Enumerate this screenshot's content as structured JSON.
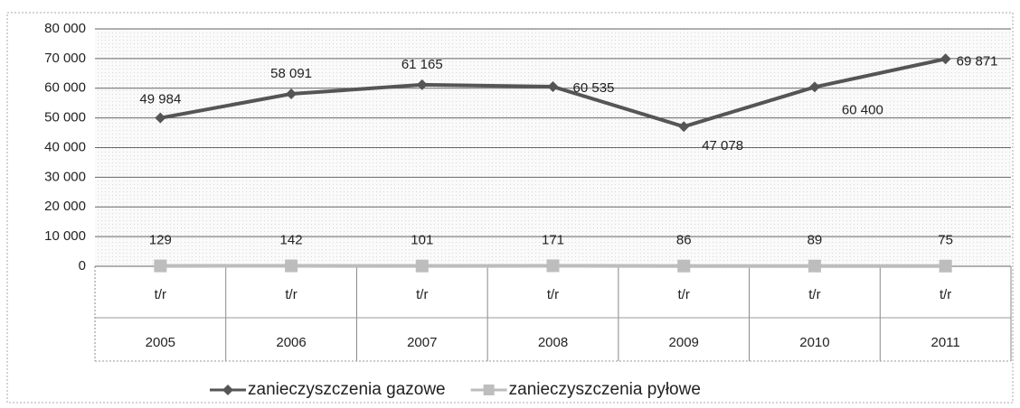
{
  "chart_data": {
    "type": "line",
    "categories": [
      "2005",
      "2006",
      "2007",
      "2008",
      "2009",
      "2010",
      "2011"
    ],
    "unit_label": "t/r",
    "series": [
      {
        "name": "zanieczyszczenia gazowe",
        "color": "#555555",
        "marker": "diamond",
        "values": [
          49984,
          58091,
          61165,
          60535,
          47078,
          60400,
          69871
        ],
        "value_labels": [
          "49 984",
          "58 091",
          "61 165",
          "60 535",
          "47 078",
          "60 400",
          "69 871"
        ]
      },
      {
        "name": "zanieczyszczenia pyłowe",
        "color": "#bdbdbd",
        "marker": "square",
        "values": [
          129,
          142,
          101,
          171,
          86,
          89,
          75
        ]
      }
    ],
    "ylim": [
      0,
      80000
    ],
    "yticks": [
      0,
      {
        "value": 10000,
        "label": "10 000"
      },
      {
        "value": 20000,
        "label": "20 000"
      },
      {
        "value": 30000,
        "label": "30 000"
      },
      {
        "value": 40000,
        "label": "40 000"
      },
      {
        "value": 50000,
        "label": "50 000"
      },
      {
        "value": 60000,
        "label": "60 000"
      },
      {
        "value": 70000,
        "label": "70 000"
      },
      {
        "value": 80000,
        "label": "80 000"
      }
    ],
    "grid": true,
    "legend": "bottom"
  }
}
